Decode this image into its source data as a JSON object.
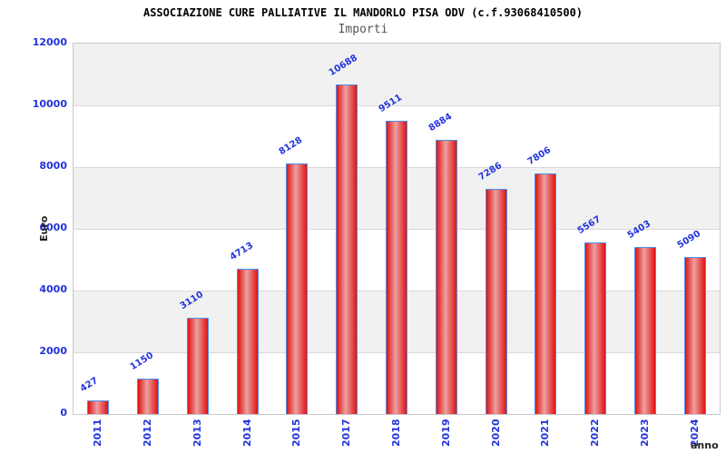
{
  "chart_data": {
    "type": "bar",
    "title": "ASSOCIAZIONE CURE PALLIATIVE IL MANDORLO PISA ODV (c.f.93068410500)",
    "subtitle": "Importi",
    "xlabel": "anno",
    "ylabel": "Euro",
    "categories": [
      "2011",
      "2012",
      "2013",
      "2014",
      "2015",
      "2017",
      "2018",
      "2019",
      "2020",
      "2021",
      "2022",
      "2023",
      "2024"
    ],
    "values": [
      427,
      1150,
      3110,
      4713,
      8128,
      10688,
      9511,
      8884,
      7286,
      7806,
      5567,
      5403,
      5090
    ],
    "ylim": [
      0,
      12000
    ],
    "yticks": [
      0,
      2000,
      4000,
      6000,
      8000,
      10000,
      12000
    ],
    "legend_position": "none",
    "grid": "alternating horizontal bands every 2000, light gridlines",
    "value_labels_rotated": true,
    "colors": {
      "bar_fill_edge": "#e01212",
      "bar_fill_center": "#eda1a1",
      "bar_border": "#4a90ee",
      "tick_label_blue": "#2233dd",
      "value_label_blue": "#2233dd",
      "band_gray": "#f1f1f1",
      "band_white": "#ffffff",
      "gridline": "#d9d9d9",
      "axis_title_color": "#222222",
      "title_color": "#000000",
      "subtitle_color": "#555555"
    }
  }
}
